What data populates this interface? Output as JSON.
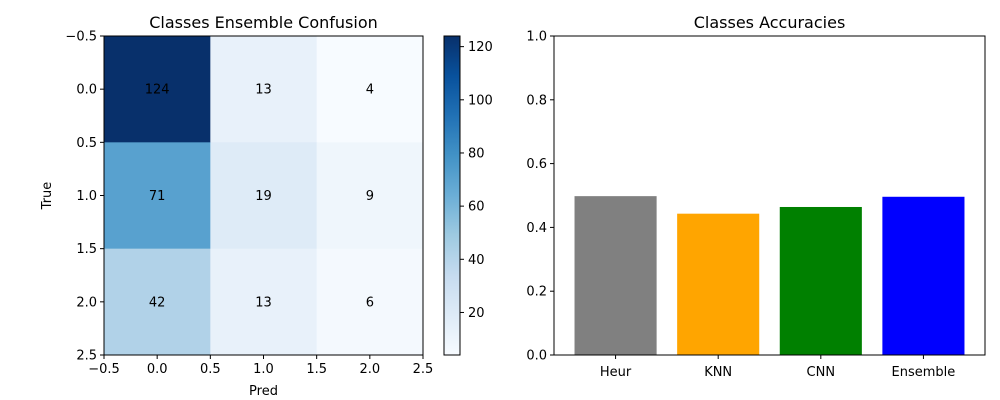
{
  "chart_data": [
    {
      "type": "heatmap",
      "title": "Classes Ensemble Confusion",
      "xlabel": "Pred",
      "ylabel": "True",
      "colormap": "Blues",
      "x_ticks": [
        "−0.5",
        "0.0",
        "0.5",
        "1.0",
        "1.5",
        "2.0",
        "2.5"
      ],
      "y_ticks": [
        "−0.5",
        "0.0",
        "0.5",
        "1.0",
        "1.5",
        "2.0",
        "2.5"
      ],
      "xlim": [
        -0.5,
        2.5
      ],
      "ylim": [
        2.5,
        -0.5
      ],
      "matrix": [
        [
          124,
          13,
          4
        ],
        [
          71,
          19,
          9
        ],
        [
          42,
          13,
          6
        ]
      ],
      "cell_labels": [
        [
          "124",
          "13",
          "4"
        ],
        [
          "71",
          "19",
          "9"
        ],
        [
          "42",
          "13",
          "6"
        ]
      ],
      "colorbar": {
        "range": [
          4,
          124
        ],
        "ticks": [
          20,
          40,
          60,
          80,
          100,
          120
        ],
        "tick_labels": [
          "20",
          "40",
          "60",
          "80",
          "100",
          "120"
        ]
      }
    },
    {
      "type": "bar",
      "title": "Classes Accuracies",
      "categories": [
        "Heur",
        "KNN",
        "CNN",
        "Ensemble"
      ],
      "values": [
        0.498,
        0.443,
        0.464,
        0.496
      ],
      "colors": [
        "#808080",
        "#ffa500",
        "#008000",
        "#0000ff"
      ],
      "ylim": [
        0,
        1
      ],
      "y_ticks": [
        0,
        0.2,
        0.4,
        0.6,
        0.8,
        1.0
      ],
      "y_tick_labels": [
        "0.0",
        "0.2",
        "0.4",
        "0.6",
        "0.8",
        "1.0"
      ]
    }
  ]
}
